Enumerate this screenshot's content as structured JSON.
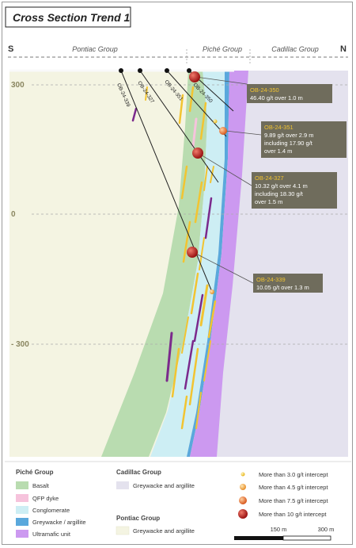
{
  "title": "Cross Section Trend 1",
  "compass": {
    "left": "S",
    "right": "N"
  },
  "groups_top": [
    "Pontiac Group",
    "Piché Group",
    "Cadillac Group"
  ],
  "elevations": [
    "300",
    "0",
    "- 300"
  ],
  "drillholes": [
    "OB-24-339",
    "OB-24-327",
    "OB-24-351",
    "OB-24-350"
  ],
  "callouts": [
    {
      "hole": "OB-24-350",
      "lines": [
        "46.40 g/t over 1.0 m"
      ]
    },
    {
      "hole": "OB-24-351",
      "lines": [
        "9.89 g/t over 2.9 m",
        "including 17.90 g/t",
        "over 1.4 m"
      ]
    },
    {
      "hole": "OB-24-327",
      "lines": [
        "10.32 g/t over 4.1 m",
        "including 18.30 g/t",
        "over 1.5 m"
      ]
    },
    {
      "hole": "OB-24-339",
      "lines": [
        "10.05 g/t over 1.3 m"
      ]
    }
  ],
  "legend": {
    "piche_title": "Piché Group",
    "piche_items": [
      {
        "label": "Basalt",
        "color": "#b9dcb0"
      },
      {
        "label": "QFP dyke",
        "color": "#f6c3dc"
      },
      {
        "label": "Conglomerate",
        "color": "#cdeef4"
      },
      {
        "label": "Greywacke / argillite",
        "color": "#5aa8dc"
      },
      {
        "label": "Ultramafic unit",
        "color": "#cc99f0"
      }
    ],
    "cadillac_title": "Cadillac Group",
    "cadillac_items": [
      {
        "label": "Greywacke and argillite",
        "color": "#e4e2ee"
      }
    ],
    "pontiac_title": "Pontiac Group",
    "pontiac_items": [
      {
        "label": "Greywacke and argillite",
        "color": "#f4f4e2"
      }
    ],
    "intercepts": [
      {
        "label": "More than 3.0 g/t intercept",
        "color": "#f2c431"
      },
      {
        "label": "More than 4.5 g/t intercept",
        "color": "#f0a040"
      },
      {
        "label": "More than 7.5 g/t intercept",
        "color": "#e06a3a"
      },
      {
        "label": "More than 10 g/t intercept",
        "color": "#b8221e"
      }
    ],
    "scale": [
      "150 m",
      "300 m"
    ]
  },
  "colors": {
    "pontiac": "#f4f4e2",
    "cadillac": "#e4e2ee",
    "basalt": "#b9dcb0",
    "conglomerate": "#cdeef4",
    "greywacke": "#5aa8dc",
    "ultramafic": "#cc99f0",
    "callout_bg": "#6f6c5c",
    "callout_hole": "#f2c431",
    "mineral": "#f2c431",
    "dyke": "#7b2a8c"
  }
}
